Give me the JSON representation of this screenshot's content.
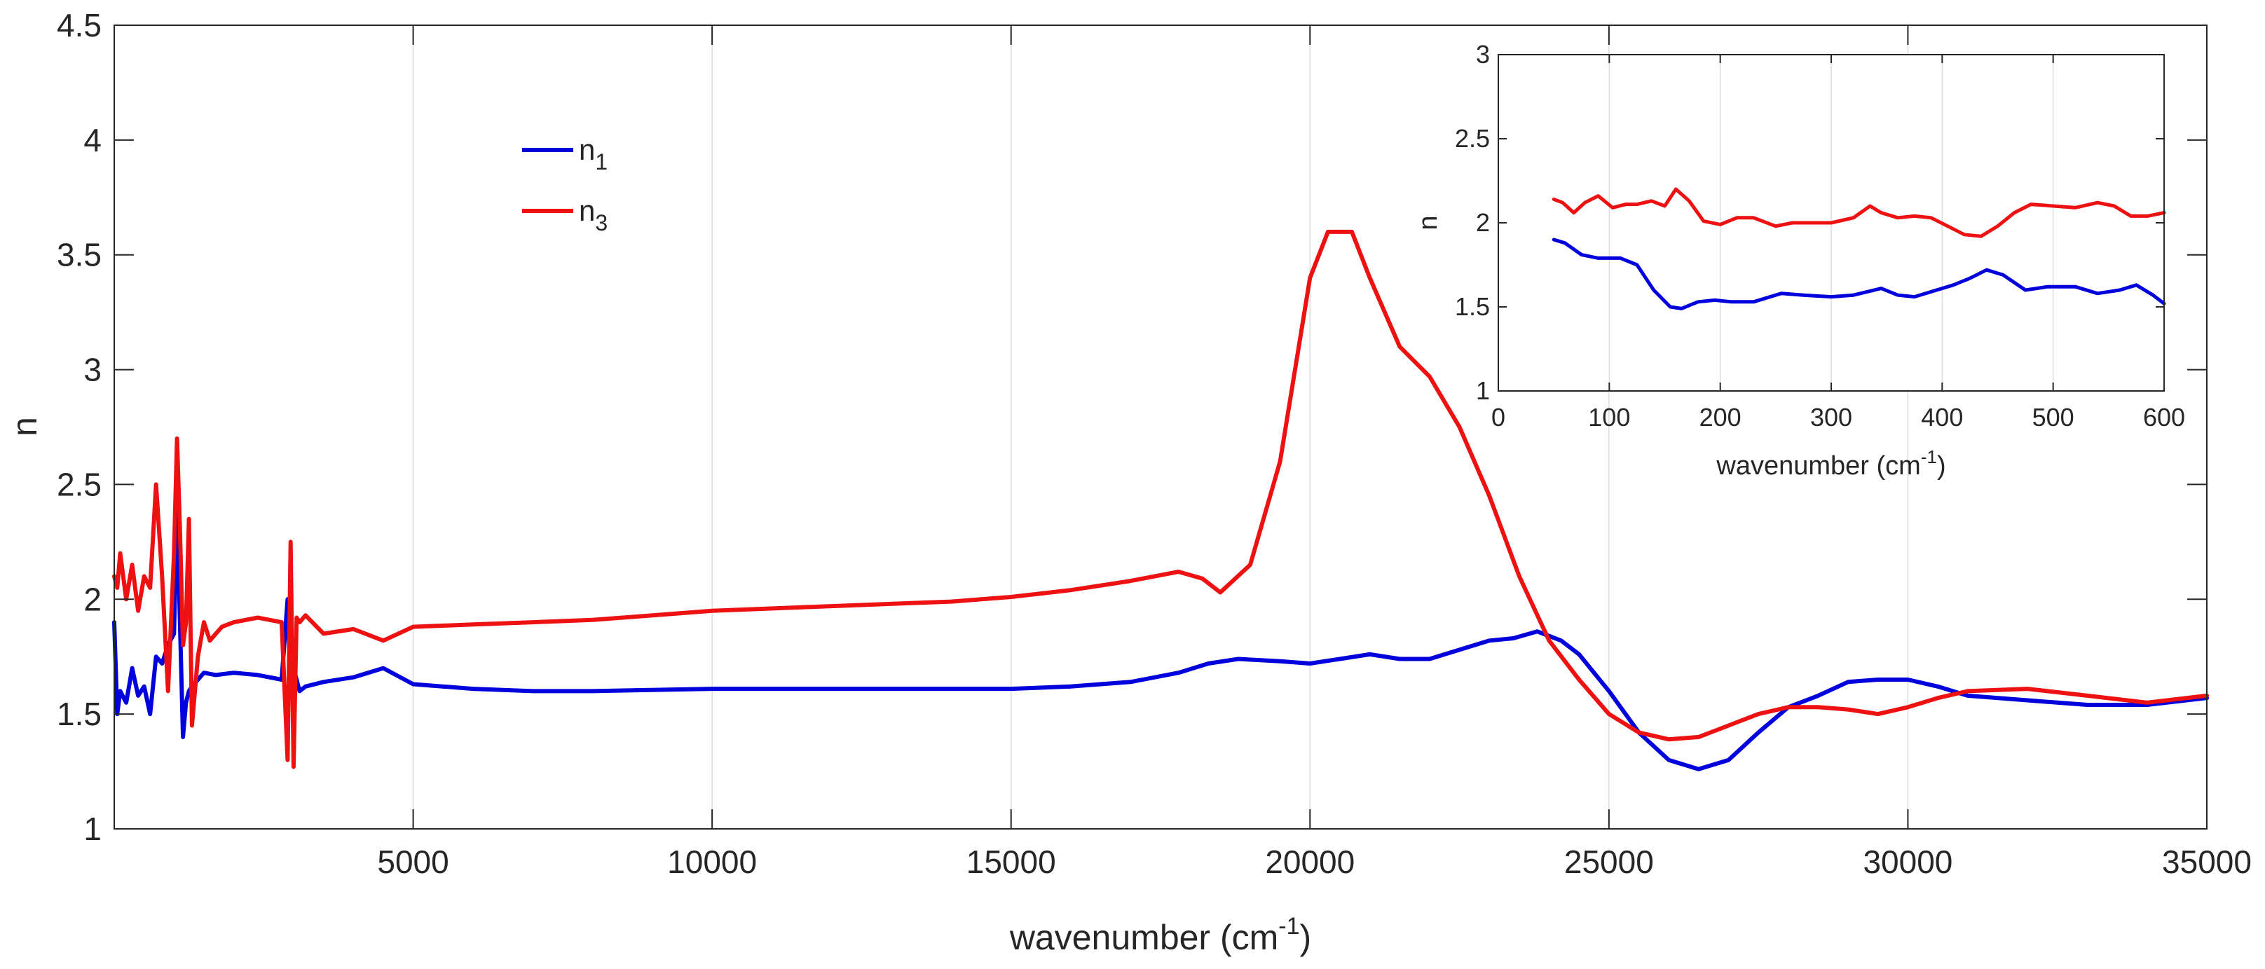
{
  "chart_data": [
    {
      "type": "line",
      "title": "",
      "xlabel": "wavenumber (cm",
      "xlabel_sup": "-1",
      "xlabel_close": ")",
      "ylabel": "n",
      "xlim": [
        0,
        35000
      ],
      "ylim": [
        1,
        4.5
      ],
      "grid": "x",
      "xticks": [
        5000,
        10000,
        15000,
        20000,
        25000,
        30000,
        35000
      ],
      "xtick_labels": [
        "5000",
        "10000",
        "15000",
        "20000",
        "25000",
        "30000",
        "35000"
      ],
      "yticks": [
        1,
        1.5,
        2,
        2.5,
        3,
        3.5,
        4,
        4.5
      ],
      "ytick_labels": [
        "1",
        "1.5",
        "2",
        "2.5",
        "3",
        "3.5",
        "4",
        "4.5"
      ],
      "legend": {
        "location": "upper-left",
        "entries": [
          {
            "base": "n",
            "sub": "1",
            "color": "#0000dd"
          },
          {
            "base": "n",
            "sub": "3",
            "color": "#ee1111"
          }
        ]
      },
      "series": [
        {
          "name": "n1",
          "color": "#0000dd",
          "x": [
            0,
            50,
            100,
            200,
            300,
            400,
            500,
            600,
            700,
            800,
            900,
            1000,
            1050,
            1100,
            1150,
            1200,
            1250,
            1300,
            1400,
            1500,
            1700,
            2000,
            2400,
            2800,
            2900,
            2950,
            3000,
            3050,
            3100,
            3200,
            3500,
            4000,
            4500,
            5000,
            6000,
            7000,
            8000,
            10000,
            12000,
            14000,
            15000,
            16000,
            17000,
            17800,
            18300,
            18800,
            19500,
            20000,
            20500,
            21000,
            21500,
            22000,
            22500,
            23000,
            23400,
            23800,
            24200,
            24500,
            25000,
            25500,
            26000,
            26500,
            27000,
            27500,
            28000,
            28500,
            29000,
            29500,
            30000,
            30500,
            31000,
            32000,
            33000,
            34000,
            35000
          ],
          "y": [
            1.9,
            1.5,
            1.6,
            1.55,
            1.7,
            1.58,
            1.62,
            1.5,
            1.75,
            1.72,
            1.8,
            1.85,
            2.4,
            1.9,
            1.4,
            1.55,
            1.6,
            1.62,
            1.65,
            1.68,
            1.67,
            1.68,
            1.67,
            1.65,
            2.0,
            1.6,
            1.7,
            1.65,
            1.6,
            1.62,
            1.64,
            1.66,
            1.7,
            1.63,
            1.61,
            1.6,
            1.6,
            1.61,
            1.61,
            1.61,
            1.61,
            1.62,
            1.64,
            1.68,
            1.72,
            1.74,
            1.73,
            1.72,
            1.74,
            1.76,
            1.74,
            1.74,
            1.78,
            1.82,
            1.83,
            1.86,
            1.82,
            1.76,
            1.6,
            1.42,
            1.3,
            1.26,
            1.3,
            1.42,
            1.53,
            1.58,
            1.64,
            1.65,
            1.65,
            1.62,
            1.58,
            1.56,
            1.54,
            1.54,
            1.57
          ]
        },
        {
          "name": "n3",
          "color": "#ee1111",
          "x": [
            0,
            50,
            100,
            200,
            300,
            400,
            500,
            600,
            700,
            800,
            900,
            1000,
            1050,
            1100,
            1150,
            1200,
            1250,
            1300,
            1400,
            1500,
            1600,
            1700,
            1800,
            2000,
            2400,
            2800,
            2900,
            2950,
            3000,
            3050,
            3100,
            3200,
            3500,
            4000,
            4500,
            5000,
            6000,
            7000,
            8000,
            10000,
            12000,
            14000,
            15000,
            16000,
            17000,
            17800,
            18200,
            18500,
            19000,
            19500,
            20000,
            20300,
            20700,
            21000,
            21500,
            22000,
            22500,
            23000,
            23500,
            24000,
            24500,
            25000,
            25500,
            26000,
            26500,
            27000,
            27500,
            28000,
            28500,
            29000,
            29500,
            30000,
            30500,
            31000,
            32000,
            33000,
            34000,
            35000
          ],
          "y": [
            2.1,
            2.05,
            2.2,
            2.0,
            2.15,
            1.95,
            2.1,
            2.05,
            2.5,
            2.1,
            1.6,
            2.2,
            2.7,
            2.3,
            1.8,
            1.9,
            2.35,
            1.45,
            1.75,
            1.9,
            1.82,
            1.85,
            1.88,
            1.9,
            1.92,
            1.9,
            1.3,
            2.25,
            1.27,
            1.92,
            1.9,
            1.93,
            1.85,
            1.87,
            1.82,
            1.88,
            1.89,
            1.9,
            1.91,
            1.95,
            1.97,
            1.99,
            2.01,
            2.04,
            2.08,
            2.12,
            2.09,
            2.03,
            2.15,
            2.6,
            3.4,
            3.6,
            3.6,
            3.4,
            3.1,
            2.97,
            2.75,
            2.45,
            2.1,
            1.82,
            1.65,
            1.5,
            1.42,
            1.39,
            1.4,
            1.45,
            1.5,
            1.53,
            1.53,
            1.52,
            1.5,
            1.53,
            1.57,
            1.6,
            1.61,
            1.58,
            1.55,
            1.58
          ]
        }
      ]
    },
    {
      "type": "line",
      "title": "",
      "xlabel": "wavenumber (cm",
      "xlabel_sup": "-1",
      "xlabel_close": ")",
      "ylabel": "n",
      "xlim": [
        0,
        600
      ],
      "ylim": [
        1,
        3
      ],
      "grid": "x",
      "legend_placement": "inset-top-right",
      "xticks": [
        0,
        100,
        200,
        300,
        400,
        500,
        600
      ],
      "xtick_labels": [
        "0",
        "100",
        "200",
        "300",
        "400",
        "500",
        "600"
      ],
      "yticks": [
        1,
        1.5,
        2,
        2.5,
        3
      ],
      "ytick_labels": [
        "1",
        "1.5",
        "2",
        "2.5",
        "3"
      ],
      "series": [
        {
          "name": "n1",
          "color": "#0000dd",
          "x": [
            50,
            60,
            75,
            90,
            110,
            125,
            140,
            155,
            165,
            180,
            195,
            210,
            230,
            255,
            275,
            300,
            320,
            345,
            360,
            375,
            395,
            410,
            425,
            440,
            455,
            475,
            495,
            520,
            540,
            560,
            575,
            590,
            600
          ],
          "y": [
            1.9,
            1.88,
            1.81,
            1.79,
            1.79,
            1.75,
            1.6,
            1.5,
            1.49,
            1.53,
            1.54,
            1.53,
            1.53,
            1.58,
            1.57,
            1.56,
            1.57,
            1.61,
            1.57,
            1.56,
            1.6,
            1.63,
            1.67,
            1.72,
            1.69,
            1.6,
            1.62,
            1.62,
            1.58,
            1.6,
            1.63,
            1.57,
            1.52
          ]
        },
        {
          "name": "n3",
          "color": "#ee1111",
          "x": [
            50,
            58,
            68,
            78,
            90,
            103,
            115,
            125,
            138,
            150,
            160,
            172,
            185,
            200,
            215,
            230,
            250,
            265,
            280,
            300,
            320,
            335,
            345,
            360,
            375,
            390,
            405,
            420,
            435,
            450,
            465,
            480,
            500,
            520,
            540,
            555,
            570,
            585,
            600
          ],
          "y": [
            2.14,
            2.12,
            2.06,
            2.12,
            2.16,
            2.09,
            2.11,
            2.11,
            2.13,
            2.1,
            2.2,
            2.13,
            2.01,
            1.99,
            2.03,
            2.03,
            1.98,
            2.0,
            2.0,
            2.0,
            2.03,
            2.1,
            2.06,
            2.03,
            2.04,
            2.03,
            1.98,
            1.93,
            1.92,
            1.98,
            2.06,
            2.11,
            2.1,
            2.09,
            2.12,
            2.1,
            2.04,
            2.04,
            2.06
          ]
        }
      ]
    }
  ]
}
